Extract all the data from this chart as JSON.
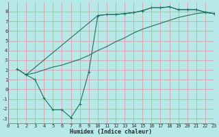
{
  "xlabel": "Humidex (Indice chaleur)",
  "xlim": [
    0,
    23
  ],
  "ylim": [
    -3.5,
    9.0
  ],
  "xticks": [
    0,
    1,
    2,
    3,
    4,
    5,
    6,
    7,
    8,
    9,
    10,
    11,
    12,
    13,
    14,
    15,
    16,
    17,
    18,
    19,
    20,
    21,
    22,
    23
  ],
  "yticks": [
    -3,
    -2,
    -1,
    0,
    1,
    2,
    3,
    4,
    5,
    6,
    7,
    8
  ],
  "bg_color": "#b8e8e8",
  "grid_color": "#d8a0a0",
  "line_color": "#1e7060",
  "curve1_x": [
    1,
    2,
    3,
    4,
    5,
    6,
    7,
    8,
    9,
    10,
    11,
    12,
    13,
    14,
    15,
    16,
    17,
    18,
    19,
    20,
    21,
    22,
    23
  ],
  "curve1_y": [
    2.1,
    1.5,
    1.0,
    -0.9,
    -2.1,
    -2.1,
    -2.9,
    -1.5,
    1.8,
    7.6,
    7.7,
    7.7,
    7.8,
    7.9,
    8.1,
    8.4,
    8.4,
    8.5,
    8.2,
    8.2,
    8.2,
    7.95,
    7.8
  ],
  "curve2_x": [
    2,
    3,
    4,
    5,
    6,
    7,
    8,
    9,
    10,
    11,
    12,
    13,
    14,
    15,
    16,
    17,
    18,
    19,
    20,
    21,
    22,
    23
  ],
  "curve2_y": [
    1.5,
    1.7,
    2.0,
    2.3,
    2.5,
    2.8,
    3.1,
    3.5,
    4.0,
    4.4,
    4.9,
    5.3,
    5.8,
    6.2,
    6.5,
    6.8,
    7.1,
    7.4,
    7.6,
    7.8,
    7.9,
    7.8
  ],
  "curve3_x": [
    1,
    2,
    10,
    11,
    12,
    13,
    14,
    15,
    16,
    17,
    18,
    19,
    20,
    21,
    22,
    23
  ],
  "curve3_y": [
    2.1,
    1.5,
    7.6,
    7.7,
    7.7,
    7.8,
    7.9,
    8.1,
    8.4,
    8.4,
    8.5,
    8.2,
    8.2,
    8.2,
    7.95,
    7.8
  ],
  "ticklabel_fontsize": 5.0,
  "xlabel_fontsize": 6.0
}
